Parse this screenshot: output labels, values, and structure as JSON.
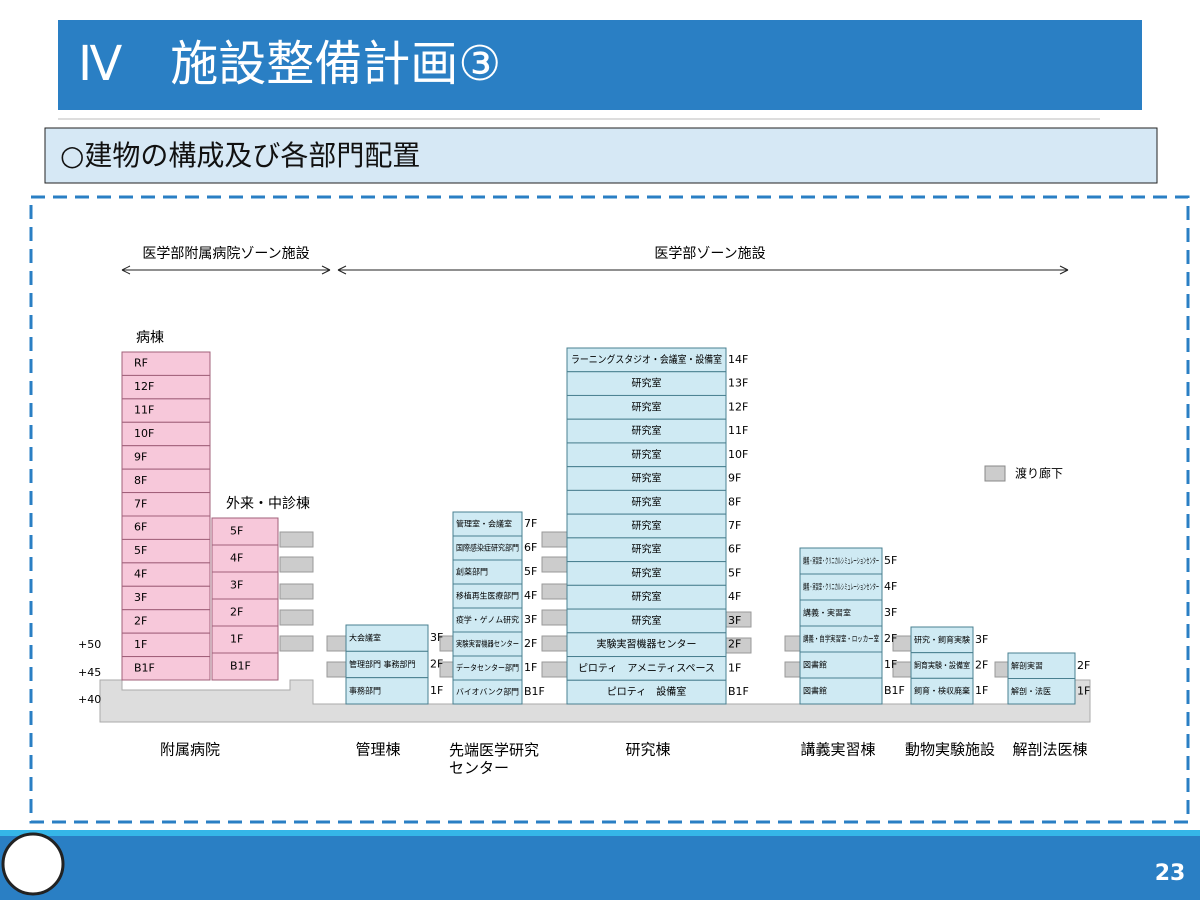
{
  "header": {
    "title": "Ⅳ　施設整備計画③",
    "subtitle": "○建物の構成及び各部門配置",
    "page": "23"
  },
  "zones": [
    "医学部附属病院ゾーン施設",
    "医学部ゾーン施設"
  ],
  "legend": "渡り廊下",
  "levels": [
    "+50",
    "+45",
    "+40"
  ],
  "buildings": [
    {
      "name": "附属病院",
      "blocks": [
        {
          "title": "病棟",
          "floors": [
            {
              "level": "RF"
            },
            {
              "level": "12F"
            },
            {
              "level": "11F"
            },
            {
              "level": "10F"
            },
            {
              "level": "9F"
            },
            {
              "level": "8F"
            },
            {
              "level": "7F"
            },
            {
              "level": "6F"
            },
            {
              "level": "5F"
            },
            {
              "level": "4F"
            },
            {
              "level": "3F"
            },
            {
              "level": "2F"
            },
            {
              "level": "1F"
            },
            {
              "level": "B1F"
            }
          ]
        },
        {
          "title": "外来・中診棟",
          "floors": [
            {
              "level": "5F"
            },
            {
              "level": "4F"
            },
            {
              "level": "3F"
            },
            {
              "level": "2F"
            },
            {
              "level": "1F"
            },
            {
              "level": "B1F"
            }
          ]
        }
      ]
    },
    {
      "name": "管理棟",
      "blocks": [
        {
          "floors": [
            {
              "level": "3F",
              "room": "大会議室"
            },
            {
              "level": "2F",
              "room": "管理部門 事務部門"
            },
            {
              "level": "1F",
              "room": "事務部門"
            }
          ]
        }
      ]
    },
    {
      "name": "先端医学研究センター",
      "blocks": [
        {
          "floors": [
            {
              "level": "7F",
              "room": "管理室・会議室"
            },
            {
              "level": "6F",
              "room": "国際感染症研究部門"
            },
            {
              "level": "5F",
              "room": "創薬部門"
            },
            {
              "level": "4F",
              "room": "移植再生医療部門"
            },
            {
              "level": "3F",
              "room": "疫学・ゲノム研究"
            },
            {
              "level": "2F",
              "room": "実験実習機器センター"
            },
            {
              "level": "1F",
              "room": "データセンター部門"
            },
            {
              "level": "B1F",
              "room": "バイオバンク部門"
            }
          ]
        }
      ]
    },
    {
      "name": "研究棟",
      "blocks": [
        {
          "floors": [
            {
              "level": "14F",
              "room": "ラーニングスタジオ・会議室・設備室"
            },
            {
              "level": "13F",
              "room": "研究室"
            },
            {
              "level": "12F",
              "room": "研究室"
            },
            {
              "level": "11F",
              "room": "研究室"
            },
            {
              "level": "10F",
              "room": "研究室"
            },
            {
              "level": "9F",
              "room": "研究室"
            },
            {
              "level": "8F",
              "room": "研究室"
            },
            {
              "level": "7F",
              "room": "研究室"
            },
            {
              "level": "6F",
              "room": "研究室"
            },
            {
              "level": "5F",
              "room": "研究室"
            },
            {
              "level": "4F",
              "room": "研究室"
            },
            {
              "level": "3F",
              "room": "研究室"
            },
            {
              "level": "2F",
              "room": "実験実習機器センター"
            },
            {
              "level": "1F",
              "room": "ピロティ　アメニティスペース"
            },
            {
              "level": "B1F",
              "room": "ピロティ　設備室"
            }
          ]
        }
      ]
    },
    {
      "name": "講義実習棟",
      "blocks": [
        {
          "floors": [
            {
              "level": "5F",
              "room": "講義・実習室・クリニカルシミュレーションセンター"
            },
            {
              "level": "4F",
              "room": "講義・実習室・クリニカルシミュレーションセンター"
            },
            {
              "level": "3F",
              "room": "講義・実習室"
            },
            {
              "level": "2F",
              "room": "講義・自学実習室・ロッカー室"
            },
            {
              "level": "1F",
              "room": "図書館"
            },
            {
              "level": "B1F",
              "room": "図書館"
            }
          ]
        }
      ]
    },
    {
      "name": "動物実験施設",
      "blocks": [
        {
          "floors": [
            {
              "level": "3F",
              "room": "研究・飼育実験"
            },
            {
              "level": "2F",
              "room": "飼育実験・設備室"
            },
            {
              "level": "1F",
              "room": "飼育・検収廃棄"
            }
          ]
        }
      ]
    },
    {
      "name": "解剖法医棟",
      "blocks": [
        {
          "floors": [
            {
              "level": "2F",
              "room": "解剖実習"
            },
            {
              "level": "1F",
              "room": "解剖・法医"
            }
          ]
        }
      ]
    }
  ]
}
